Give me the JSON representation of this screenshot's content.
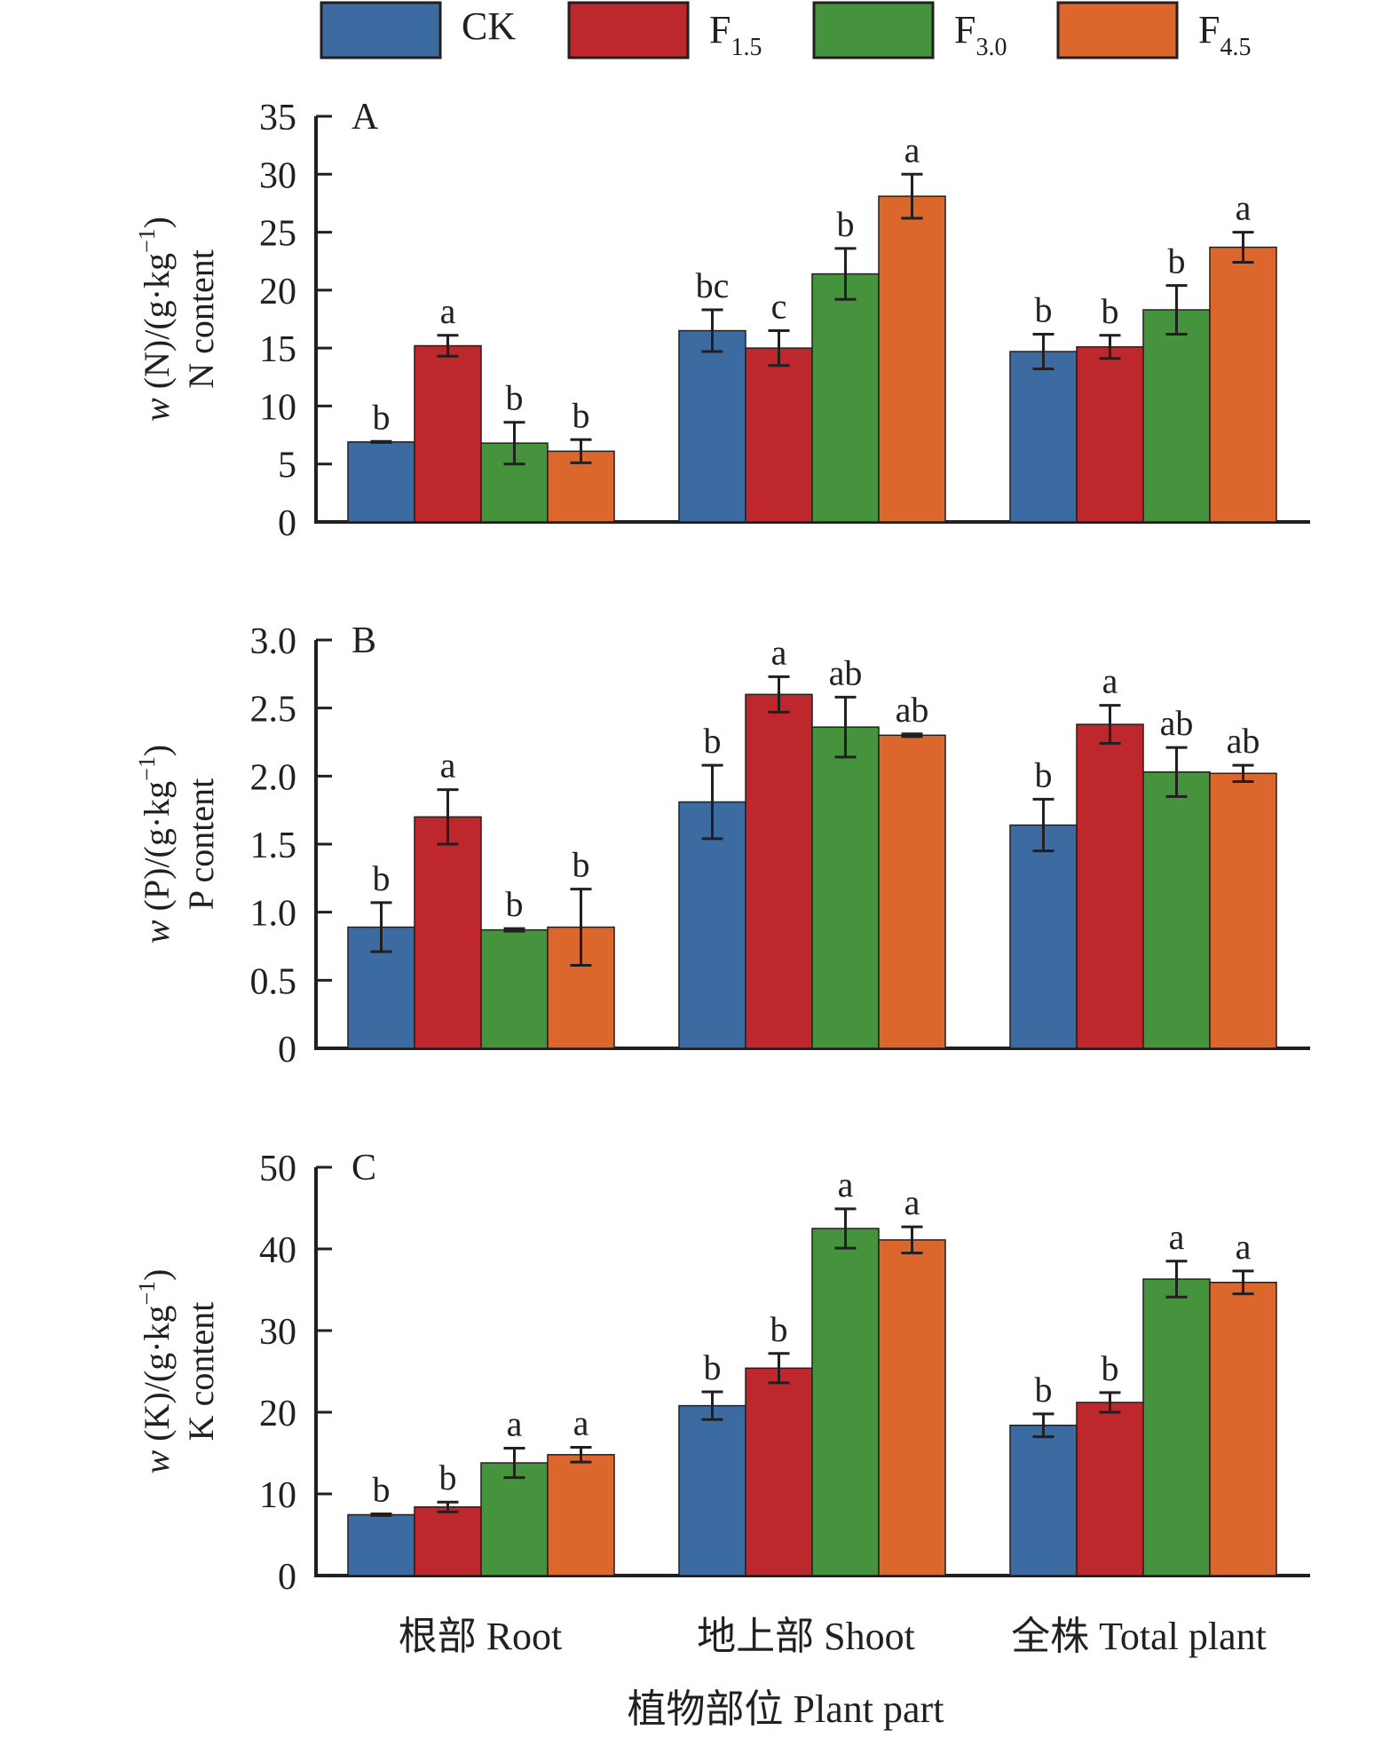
{
  "legend": {
    "items": [
      {
        "name": "CK",
        "base": "CK",
        "sub": "",
        "color": "#3c6ba1"
      },
      {
        "name": "F1.5",
        "base": "F",
        "sub": "1.5",
        "color": "#be282d"
      },
      {
        "name": "F3.0",
        "base": "F",
        "sub": "3.0",
        "color": "#46933d"
      },
      {
        "name": "F4.5",
        "base": "F",
        "sub": "4.5",
        "color": "#dc672d"
      }
    ]
  },
  "chart_data": [
    {
      "type": "bar",
      "panel": "A",
      "title": "A",
      "xlabel": "植物部位 Plant part",
      "ylabel_line1_italic": "w",
      "ylabel_line1": " (N)/(g·kg",
      "ylabel_sup": "−1",
      "ylabel_close": ")",
      "ylabel_line2": "N content",
      "categories": [
        "根部 Root",
        "地上部 Shoot",
        "全株 Total plant"
      ],
      "ylim": [
        0,
        35
      ],
      "yticks": [
        0,
        5,
        10,
        15,
        20,
        25,
        30,
        35
      ],
      "ytick_labels": [
        "0",
        "5",
        "10",
        "15",
        "20",
        "25",
        "30",
        "35"
      ],
      "grid": false,
      "legend_position": "top",
      "series": [
        {
          "name": "CK",
          "values": [
            6.9,
            16.5,
            14.7
          ],
          "errors": [
            0.05,
            1.8,
            1.5
          ],
          "letters": [
            "b",
            "bc",
            "b"
          ]
        },
        {
          "name": "F1.5",
          "values": [
            15.2,
            15.0,
            15.1
          ],
          "errors": [
            0.9,
            1.5,
            1.0
          ],
          "letters": [
            "a",
            "c",
            "b"
          ]
        },
        {
          "name": "F3.0",
          "values": [
            6.8,
            21.4,
            18.3
          ],
          "errors": [
            1.8,
            2.2,
            2.1
          ],
          "letters": [
            "b",
            "b",
            "b"
          ]
        },
        {
          "name": "F4.5",
          "values": [
            6.1,
            28.1,
            23.7
          ],
          "errors": [
            1.0,
            1.9,
            1.3
          ],
          "letters": [
            "b",
            "a",
            "a"
          ]
        }
      ]
    },
    {
      "type": "bar",
      "panel": "B",
      "title": "B",
      "xlabel": "植物部位 Plant part",
      "ylabel_line1_italic": "w",
      "ylabel_line1": " (P)/(g·kg",
      "ylabel_sup": "−1",
      "ylabel_close": ")",
      "ylabel_line2": "P content",
      "categories": [
        "根部 Root",
        "地上部 Shoot",
        "全株 Total plant"
      ],
      "ylim": [
        0,
        3.0
      ],
      "yticks": [
        0,
        0.5,
        1.0,
        1.5,
        2.0,
        2.5,
        3.0
      ],
      "ytick_labels": [
        "0",
        "0.5",
        "1.0",
        "1.5",
        "2.0",
        "2.5",
        "3.0"
      ],
      "grid": false,
      "legend_position": "top",
      "series": [
        {
          "name": "CK",
          "values": [
            0.89,
            1.81,
            1.64
          ],
          "errors": [
            0.18,
            0.27,
            0.19
          ],
          "letters": [
            "b",
            "b",
            "b"
          ]
        },
        {
          "name": "F1.5",
          "values": [
            1.7,
            2.6,
            2.38
          ],
          "errors": [
            0.2,
            0.13,
            0.14
          ],
          "letters": [
            "a",
            "a",
            "a"
          ]
        },
        {
          "name": "F3.0",
          "values": [
            0.87,
            2.36,
            2.03
          ],
          "errors": [
            0.01,
            0.22,
            0.18
          ],
          "letters": [
            "b",
            "ab",
            "ab"
          ]
        },
        {
          "name": "F4.5",
          "values": [
            0.89,
            2.3,
            2.02
          ],
          "errors": [
            0.28,
            0.01,
            0.06
          ],
          "letters": [
            "b",
            "ab",
            "ab"
          ]
        }
      ]
    },
    {
      "type": "bar",
      "panel": "C",
      "title": "C",
      "xlabel": "植物部位 Plant part",
      "ylabel_line1_italic": "w",
      "ylabel_line1": " (K)/(g·kg",
      "ylabel_sup": "−1",
      "ylabel_close": ")",
      "ylabel_line2": "K content",
      "categories": [
        "根部 Root",
        "地上部 Shoot",
        "全株 Total plant"
      ],
      "ylim": [
        0,
        50
      ],
      "yticks": [
        0,
        10,
        20,
        30,
        40,
        50
      ],
      "ytick_labels": [
        "0",
        "10",
        "20",
        "30",
        "40",
        "50"
      ],
      "grid": false,
      "legend_position": "top",
      "series": [
        {
          "name": "CK",
          "values": [
            7.45,
            20.8,
            18.4
          ],
          "errors": [
            0.1,
            1.7,
            1.4
          ],
          "letters": [
            "b",
            "b",
            "b"
          ]
        },
        {
          "name": "F1.5",
          "values": [
            8.4,
            25.4,
            21.2
          ],
          "errors": [
            0.6,
            1.8,
            1.2
          ],
          "letters": [
            "b",
            "b",
            "b"
          ]
        },
        {
          "name": "F3.0",
          "values": [
            13.8,
            42.5,
            36.3
          ],
          "errors": [
            1.8,
            2.4,
            2.2
          ],
          "letters": [
            "a",
            "a",
            "a"
          ]
        },
        {
          "name": "F4.5",
          "values": [
            14.8,
            41.1,
            35.9
          ],
          "errors": [
            0.9,
            1.6,
            1.4
          ],
          "letters": [
            "a",
            "a",
            "a"
          ]
        }
      ]
    }
  ],
  "x_axis": {
    "categories": [
      "根部 Root",
      "地上部 Shoot",
      "全株 Total plant"
    ],
    "title": "植物部位 Plant part"
  }
}
